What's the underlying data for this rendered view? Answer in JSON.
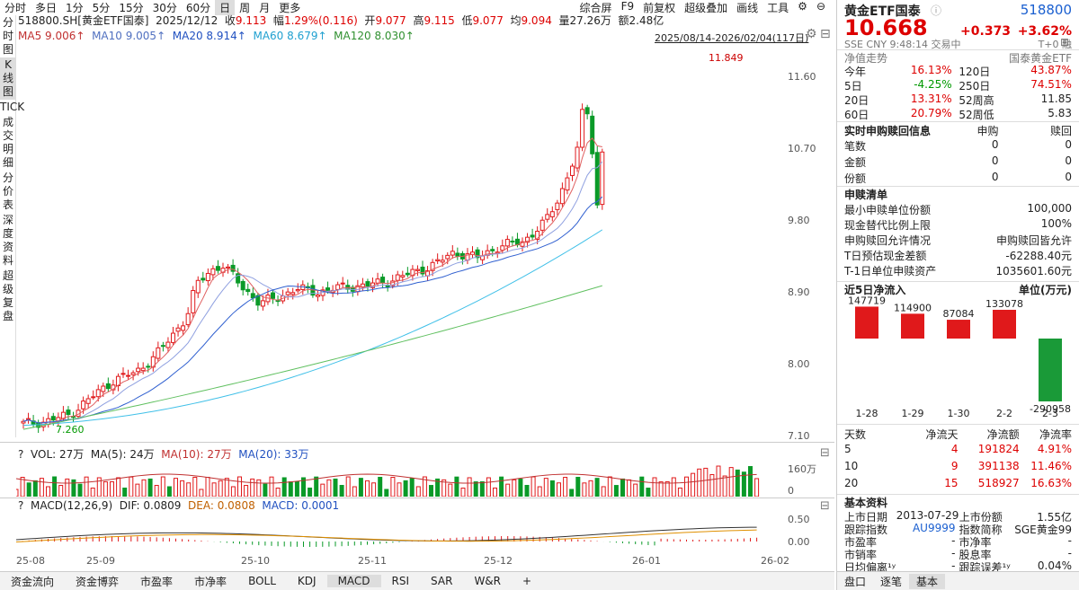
{
  "toolbar": {
    "tabs": [
      "分时",
      "多日",
      "1分",
      "5分",
      "15分",
      "30分",
      "60分",
      "日",
      "周",
      "月",
      "更多"
    ],
    "right": [
      "综合屏",
      "F9",
      "前复权",
      "超级叠加",
      "画线",
      "工具"
    ]
  },
  "vtabs": [
    "分时图",
    "K线图",
    "TICK",
    "成交明细",
    "分价表",
    "深度资料",
    "超级复盘"
  ],
  "info": {
    "code": "518800.SH[黄金ETF国泰]",
    "date": "2025/12/12",
    "close_l": "收",
    "close": "9.113",
    "chg_l": "幅",
    "chg": "1.29%(0.116)",
    "open_l": "开",
    "open": "9.077",
    "high_l": "高",
    "high": "9.115",
    "low_l": "低",
    "low": "9.077",
    "avg_l": "均",
    "avg": "9.094",
    "vol_l": "量",
    "vol": "27.26万",
    "amt_l": "额",
    "amt": "2.48亿"
  },
  "ma": {
    "ma5": "MA5 9.006↑",
    "ma10": "MA10 9.005↑",
    "ma20": "MA20 8.914↑",
    "ma60": "MA60 8.679↑",
    "ma120": "MA120 8.030↑"
  },
  "range": "2025/08/14-2026/02/04(117日)",
  "price_labels": [
    "11.60",
    "10.70",
    "9.80",
    "8.90",
    "8.00",
    "7.10"
  ],
  "high_mark": "11.849",
  "low_mark": "7.260",
  "vol": {
    "t": "VOL: 27万",
    "ma5": "MA(5): 24万",
    "ma10": "MA(10): 27万",
    "ma20": "MA(20): 33万",
    "axis_top": "160万",
    "axis_bot": "0"
  },
  "macd": {
    "t": "MACD(12,26,9)",
    "dif": "DIF: 0.0809",
    "dea": "DEA: 0.0808",
    "macd": "MACD: 0.0001",
    "a1": "0.50",
    "a2": "0.00"
  },
  "xlabels": [
    "25-08",
    "25-09",
    "25-10",
    "25-11",
    "25-12",
    "26-01",
    "26-02"
  ],
  "bottom": [
    "资金流向",
    "资金博弈",
    "市盈率",
    "市净率",
    "BOLL",
    "KDJ",
    "MACD",
    "RSI",
    "SAR",
    "W&R",
    "+"
  ],
  "rp": {
    "name": "黄金ETF国泰",
    "code": "518800",
    "price": "10.668",
    "chg": "+0.373",
    "pct": "+3.62%",
    "sub": "SSE  CNY  9:48:14  交易中",
    "t0": "T+0 融",
    "nav_title": "净值走势",
    "nav_name": "国泰黄金ETF",
    "perf": [
      [
        "今年",
        "16.13%",
        "120日",
        "43.87%"
      ],
      [
        "5日",
        "-4.25%",
        "250日",
        "74.51%"
      ],
      [
        "20日",
        "13.31%",
        "52周高",
        "11.85"
      ],
      [
        "60日",
        "20.79%",
        "52周低",
        "5.83"
      ]
    ],
    "sr_title": "实时申购赎回信息",
    "sr_h1": "申购",
    "sr_h2": "赎回",
    "sr": [
      [
        "笔数",
        "0",
        "0"
      ],
      [
        "金额",
        "0",
        "0"
      ],
      [
        "份额",
        "0",
        "0"
      ]
    ],
    "list_title": "申赎清单",
    "list": [
      [
        "最小申赎单位份额",
        "100,000"
      ],
      [
        "现金替代比例上限",
        "100%"
      ],
      [
        "申购赎回允许情况",
        "申购赎回皆允许"
      ],
      [
        "T日预估现金差额",
        "-62288.40元"
      ],
      [
        "T-1日单位申赎资产",
        "1035601.60元"
      ]
    ],
    "flow_title": "近5日净流入",
    "flow_unit": "单位(万元)",
    "flow": [
      {
        "d": "1-28",
        "v": 147719
      },
      {
        "d": "1-29",
        "v": 114900
      },
      {
        "d": "1-30",
        "v": 87084
      },
      {
        "d": "2-2",
        "v": 133078
      },
      {
        "d": "2-3",
        "v": -290958
      }
    ],
    "ft_h": [
      "天数",
      "净流天",
      "净流额",
      "净流率"
    ],
    "ft": [
      [
        "5",
        "4",
        "191824",
        "4.91%"
      ],
      [
        "10",
        "9",
        "391138",
        "11.46%"
      ],
      [
        "20",
        "15",
        "518927",
        "16.63%"
      ]
    ],
    "basic_title": "基本资料",
    "basic": [
      [
        "上市日期",
        "2013-07-29",
        "上市份额",
        "1.55亿"
      ],
      [
        "跟踪指数",
        "AU9999",
        "指数简称",
        "SGE黄金99"
      ],
      [
        "市盈率",
        "-",
        "市净率",
        "-"
      ],
      [
        "市销率",
        "-",
        "股息率",
        "-"
      ],
      [
        "日均偏离¹ʸ",
        "-",
        "跟踪误差¹ʸ",
        "0.04%"
      ]
    ],
    "tabs": [
      "盘口",
      "逐笔",
      "基本"
    ]
  },
  "colors": {
    "up": "#e0191b",
    "down": "#0a9a28",
    "ma5": "#e06060",
    "ma10": "#8fa0e0",
    "ma20": "#3060d0",
    "ma60": "#40c0e8",
    "ma120": "#60c060"
  }
}
